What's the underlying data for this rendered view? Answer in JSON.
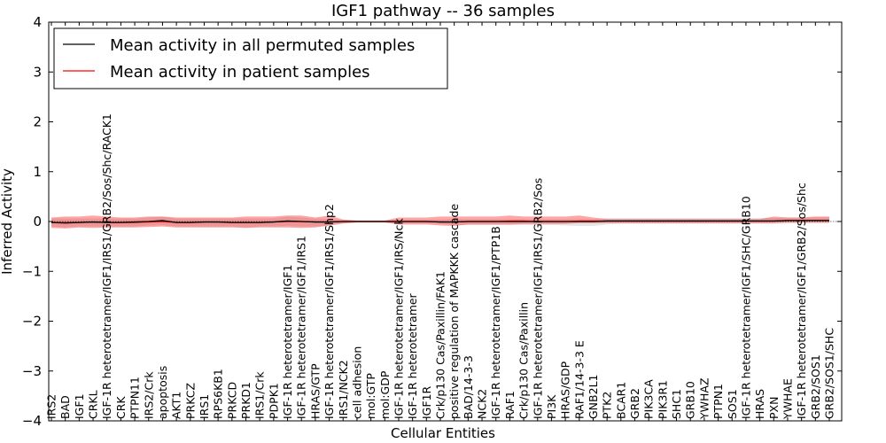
{
  "chart_data": {
    "type": "line",
    "title": "IGF1 pathway -- 36 samples",
    "xlabel": "Cellular Entities",
    "ylabel": "Inferred Activity",
    "ylim": [
      -4,
      4
    ],
    "yticks": [
      "4",
      "3",
      "2",
      "1",
      "0",
      "−1",
      "−2",
      "−3",
      "−4"
    ],
    "ytick_values": [
      4,
      3,
      2,
      1,
      0,
      -1,
      -2,
      -3,
      -4
    ],
    "legend": {
      "position": "top-left",
      "entries": [
        {
          "label": "Mean activity in all permuted samples",
          "color": "#000000"
        },
        {
          "label": "Mean activity in patient samples",
          "color": "#ff0000"
        }
      ]
    },
    "categories": [
      "IRS2",
      "BAD",
      "IGF1",
      "CRKL",
      "IGF-1R heterotetramer/IGF1/IRS1/GRB2/Sos/Shc/RACK1",
      "CRK",
      "PTPN11",
      "IRS2/Crk",
      "apoptosis",
      "AKT1",
      "PRKCZ",
      "IRS1",
      "RPS6KB1",
      "PRKCD",
      "PRKD1",
      "IRS1/Crk",
      "PDPK1",
      "IGF-1R heterotetramer/IGF1",
      "IGF-1R heterotetramer/IGF1/IRS1",
      "HRAS/GTP",
      "IGF-1R heterotetramer/IGF1/IRS1/Shp2",
      "IRS1/NCK2",
      "cell adhesion",
      "mol:GTP",
      "mol:GDP",
      "IGF-1R heterotetramer/IGF1/IRS/Nck",
      "IGF-1R heterotetramer",
      "IGF1R",
      "Crk/p130 Cas/Paxillin/FAK1",
      "positive regulation of MAPKKK cascade",
      "BAD/14-3-3",
      "NCK2",
      "IGF-1R heterotetramer/IGF1/PTP1B",
      "RAF1",
      "Crk/p130 Cas/Paxillin",
      "IGF-1R heterotetramer/IGF1/IRS1/GRB2/Sos",
      "PI3K",
      "HRAS/GDP",
      "RAF1/14-3-3 E",
      "GNB2L1",
      "PTK2",
      "BCAR1",
      "GRB2",
      "PIK3CA",
      "PIK3R1",
      "SHC1",
      "GRB10",
      "YWHAZ",
      "PTPN1",
      "SOS1",
      "IGF-1R heterotetramer/IGF1/SHC/GRB10",
      "HRAS",
      "PXN",
      "YWHAE",
      "IGF-1R heterotetramer/IGF1/GRB2/Sos/Shc",
      "GRB2/SOS1",
      "GRB2/SOS1/SHC"
    ],
    "series": [
      {
        "name": "Mean activity in all permuted samples",
        "color": "#000000",
        "values": [
          -0.02,
          -0.03,
          -0.02,
          -0.01,
          -0.02,
          -0.02,
          -0.01,
          0.0,
          0.02,
          -0.02,
          -0.02,
          -0.01,
          -0.01,
          -0.02,
          -0.02,
          -0.02,
          -0.01,
          0.01,
          0.0,
          -0.01,
          -0.01,
          0.0,
          0.0,
          0.0,
          0.0,
          0.0,
          0.0,
          0.0,
          -0.01,
          -0.01,
          0.0,
          0.0,
          0.0,
          0.0,
          0.0,
          0.0,
          0.0,
          0.0,
          0.0,
          0.0,
          0.01,
          0.01,
          0.01,
          0.01,
          0.01,
          0.01,
          0.01,
          0.01,
          0.01,
          0.01,
          0.01,
          0.01,
          0.01,
          0.02,
          0.02,
          0.02,
          0.02
        ],
        "lower": [
          -0.1,
          -0.12,
          -0.1,
          -0.1,
          -0.1,
          -0.1,
          -0.1,
          -0.08,
          -0.07,
          -0.1,
          -0.1,
          -0.1,
          -0.1,
          -0.1,
          -0.12,
          -0.1,
          -0.1,
          -0.09,
          -0.1,
          -0.1,
          -0.08,
          -0.04,
          -0.02,
          -0.02,
          -0.02,
          -0.04,
          -0.04,
          -0.04,
          -0.05,
          -0.07,
          -0.07,
          -0.07,
          -0.07,
          -0.07,
          -0.07,
          -0.07,
          -0.07,
          -0.08,
          -0.09,
          -0.09,
          -0.06,
          -0.05,
          -0.05,
          -0.05,
          -0.05,
          -0.05,
          -0.05,
          -0.05,
          -0.05,
          -0.05,
          -0.05,
          -0.05,
          -0.05,
          -0.04,
          -0.04,
          -0.04,
          -0.04
        ],
        "upper": [
          0.06,
          0.06,
          0.06,
          0.06,
          0.06,
          0.06,
          0.06,
          0.08,
          0.1,
          0.06,
          0.06,
          0.06,
          0.06,
          0.06,
          0.06,
          0.06,
          0.06,
          0.1,
          0.08,
          0.06,
          0.05,
          0.03,
          0.02,
          0.02,
          0.02,
          0.04,
          0.04,
          0.04,
          0.04,
          0.05,
          0.05,
          0.05,
          0.05,
          0.05,
          0.05,
          0.05,
          0.05,
          0.05,
          0.05,
          0.05,
          0.07,
          0.07,
          0.07,
          0.07,
          0.07,
          0.07,
          0.07,
          0.07,
          0.07,
          0.07,
          0.07,
          0.07,
          0.07,
          0.08,
          0.08,
          0.08,
          0.08
        ]
      },
      {
        "name": "Mean activity in patient samples",
        "color": "#ff0000",
        "values": [
          -0.02,
          -0.02,
          -0.02,
          -0.01,
          -0.02,
          -0.02,
          -0.02,
          -0.01,
          0.0,
          -0.02,
          -0.02,
          -0.01,
          -0.01,
          -0.02,
          -0.02,
          -0.02,
          -0.01,
          0.0,
          0.0,
          -0.01,
          -0.01,
          0.0,
          0.0,
          0.0,
          0.0,
          0.0,
          0.0,
          0.0,
          -0.01,
          -0.01,
          0.0,
          0.0,
          0.0,
          0.01,
          0.01,
          0.0,
          0.0,
          0.0,
          0.01,
          0.01,
          0.01,
          0.01,
          0.01,
          0.01,
          0.01,
          0.01,
          0.01,
          0.01,
          0.01,
          0.01,
          0.01,
          0.01,
          0.01,
          0.02,
          0.02,
          0.02,
          0.02
        ],
        "lower": [
          -0.13,
          -0.14,
          -0.12,
          -0.13,
          -0.12,
          -0.12,
          -0.12,
          -0.11,
          -0.1,
          -0.12,
          -0.12,
          -0.12,
          -0.12,
          -0.12,
          -0.13,
          -0.12,
          -0.12,
          -0.12,
          -0.13,
          -0.12,
          -0.08,
          -0.04,
          -0.02,
          -0.02,
          -0.02,
          -0.06,
          -0.06,
          -0.06,
          -0.08,
          -0.09,
          -0.06,
          -0.06,
          -0.06,
          -0.06,
          -0.05,
          -0.05,
          -0.05,
          -0.05,
          -0.03,
          -0.03,
          -0.03,
          -0.03,
          -0.03,
          -0.03,
          -0.03,
          -0.03,
          -0.03,
          -0.03,
          -0.03,
          -0.03,
          -0.03,
          -0.03,
          -0.03,
          -0.02,
          -0.02,
          -0.02,
          -0.02
        ],
        "upper": [
          0.08,
          0.1,
          0.1,
          0.12,
          0.1,
          0.08,
          0.08,
          0.1,
          0.1,
          0.08,
          0.08,
          0.08,
          0.08,
          0.08,
          0.1,
          0.1,
          0.1,
          0.12,
          0.12,
          0.08,
          0.12,
          0.04,
          0.02,
          0.02,
          0.02,
          0.08,
          0.08,
          0.08,
          0.1,
          0.1,
          0.1,
          0.1,
          0.1,
          0.12,
          0.1,
          0.1,
          0.1,
          0.1,
          0.12,
          0.08,
          0.05,
          0.05,
          0.05,
          0.05,
          0.05,
          0.05,
          0.05,
          0.05,
          0.05,
          0.05,
          0.05,
          0.05,
          0.1,
          0.08,
          0.08,
          0.1,
          0.1
        ]
      }
    ]
  }
}
